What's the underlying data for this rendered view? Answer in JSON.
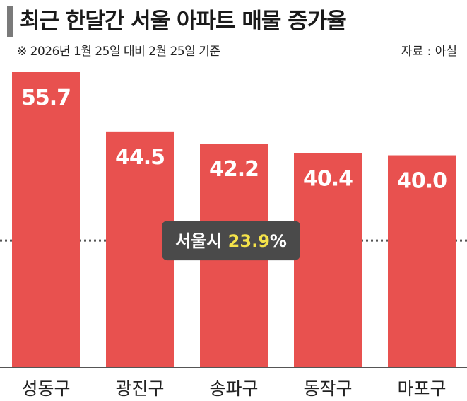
{
  "header": {
    "title": "최근 한달간 서울 아파트 매물 증가율",
    "subtitle": "※ 2026년 1월 25일 대비 2월 25일 기준",
    "source": "자료 : 아실"
  },
  "colors": {
    "bar": "#e8514f",
    "reference_line": "#555555",
    "pill_bg": "#4a4a4a",
    "pill_value": "#f5e34a"
  },
  "chart_data": {
    "type": "bar",
    "title": "최근 한달간 서울 아파트 매물 증가율",
    "categories": [
      "성동구",
      "광진구",
      "송파구",
      "동작구",
      "마포구"
    ],
    "values": [
      55.7,
      44.5,
      42.2,
      40.4,
      40.0
    ],
    "value_labels": [
      "55.7",
      "44.5",
      "42.2",
      "40.4",
      "40.0"
    ],
    "reference": {
      "label": "서울시",
      "value": 23.9,
      "value_text": "23.9",
      "unit": "%"
    },
    "ylim": [
      0,
      60
    ],
    "grid": false,
    "legend": "none"
  }
}
